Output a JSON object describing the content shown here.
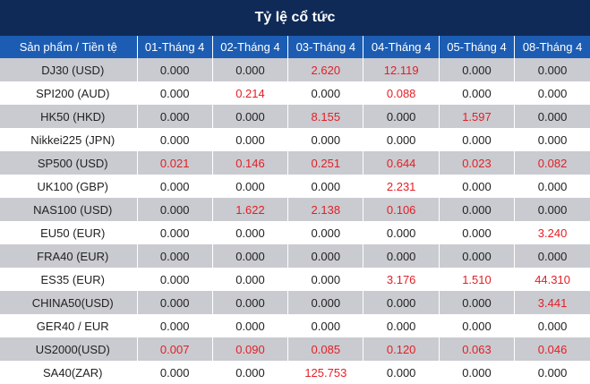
{
  "title": "Tỷ lệ cổ tức",
  "columns": [
    "Sản phẩm / Tiền tệ",
    "01-Tháng 4",
    "02-Tháng 4",
    "03-Tháng 4",
    "04-Tháng 4",
    "05-Tháng 4",
    "08-Tháng 4"
  ],
  "rows": [
    {
      "product": "DJ30 (USD)",
      "values": [
        "0.000",
        "0.000",
        "2.620",
        "12.119",
        "0.000",
        "0.000"
      ]
    },
    {
      "product": "SPI200 (AUD)",
      "values": [
        "0.000",
        "0.214",
        "0.000",
        "0.088",
        "0.000",
        "0.000"
      ]
    },
    {
      "product": "HK50 (HKD)",
      "values": [
        "0.000",
        "0.000",
        "8.155",
        "0.000",
        "1.597",
        "0.000"
      ]
    },
    {
      "product": "Nikkei225 (JPN)",
      "values": [
        "0.000",
        "0.000",
        "0.000",
        "0.000",
        "0.000",
        "0.000"
      ]
    },
    {
      "product": "SP500 (USD)",
      "values": [
        "0.021",
        "0.146",
        "0.251",
        "0.644",
        "0.023",
        "0.082"
      ]
    },
    {
      "product": "UK100 (GBP)",
      "values": [
        "0.000",
        "0.000",
        "0.000",
        "2.231",
        "0.000",
        "0.000"
      ]
    },
    {
      "product": "NAS100 (USD)",
      "values": [
        "0.000",
        "1.622",
        "2.138",
        "0.106",
        "0.000",
        "0.000"
      ]
    },
    {
      "product": "EU50 (EUR)",
      "values": [
        "0.000",
        "0.000",
        "0.000",
        "0.000",
        "0.000",
        "3.240"
      ]
    },
    {
      "product": "FRA40 (EUR)",
      "values": [
        "0.000",
        "0.000",
        "0.000",
        "0.000",
        "0.000",
        "0.000"
      ]
    },
    {
      "product": "ES35 (EUR)",
      "values": [
        "0.000",
        "0.000",
        "0.000",
        "3.176",
        "1.510",
        "44.310"
      ]
    },
    {
      "product": "CHINA50(USD)",
      "values": [
        "0.000",
        "0.000",
        "0.000",
        "0.000",
        "0.000",
        "3.441"
      ]
    },
    {
      "product": "GER40 / EUR",
      "values": [
        "0.000",
        "0.000",
        "0.000",
        "0.000",
        "0.000",
        "0.000"
      ]
    },
    {
      "product": "US2000(USD)",
      "values": [
        "0.007",
        "0.090",
        "0.085",
        "0.120",
        "0.063",
        "0.046"
      ]
    },
    {
      "product": "SA40(ZAR)",
      "values": [
        "0.000",
        "0.000",
        "125.753",
        "0.000",
        "0.000",
        "0.000"
      ]
    }
  ],
  "colors": {
    "title_bg": "#0f2a57",
    "header_bg": "#1c5db3",
    "stripe": "#c9cbd0",
    "nonzero": "#e41e26"
  }
}
